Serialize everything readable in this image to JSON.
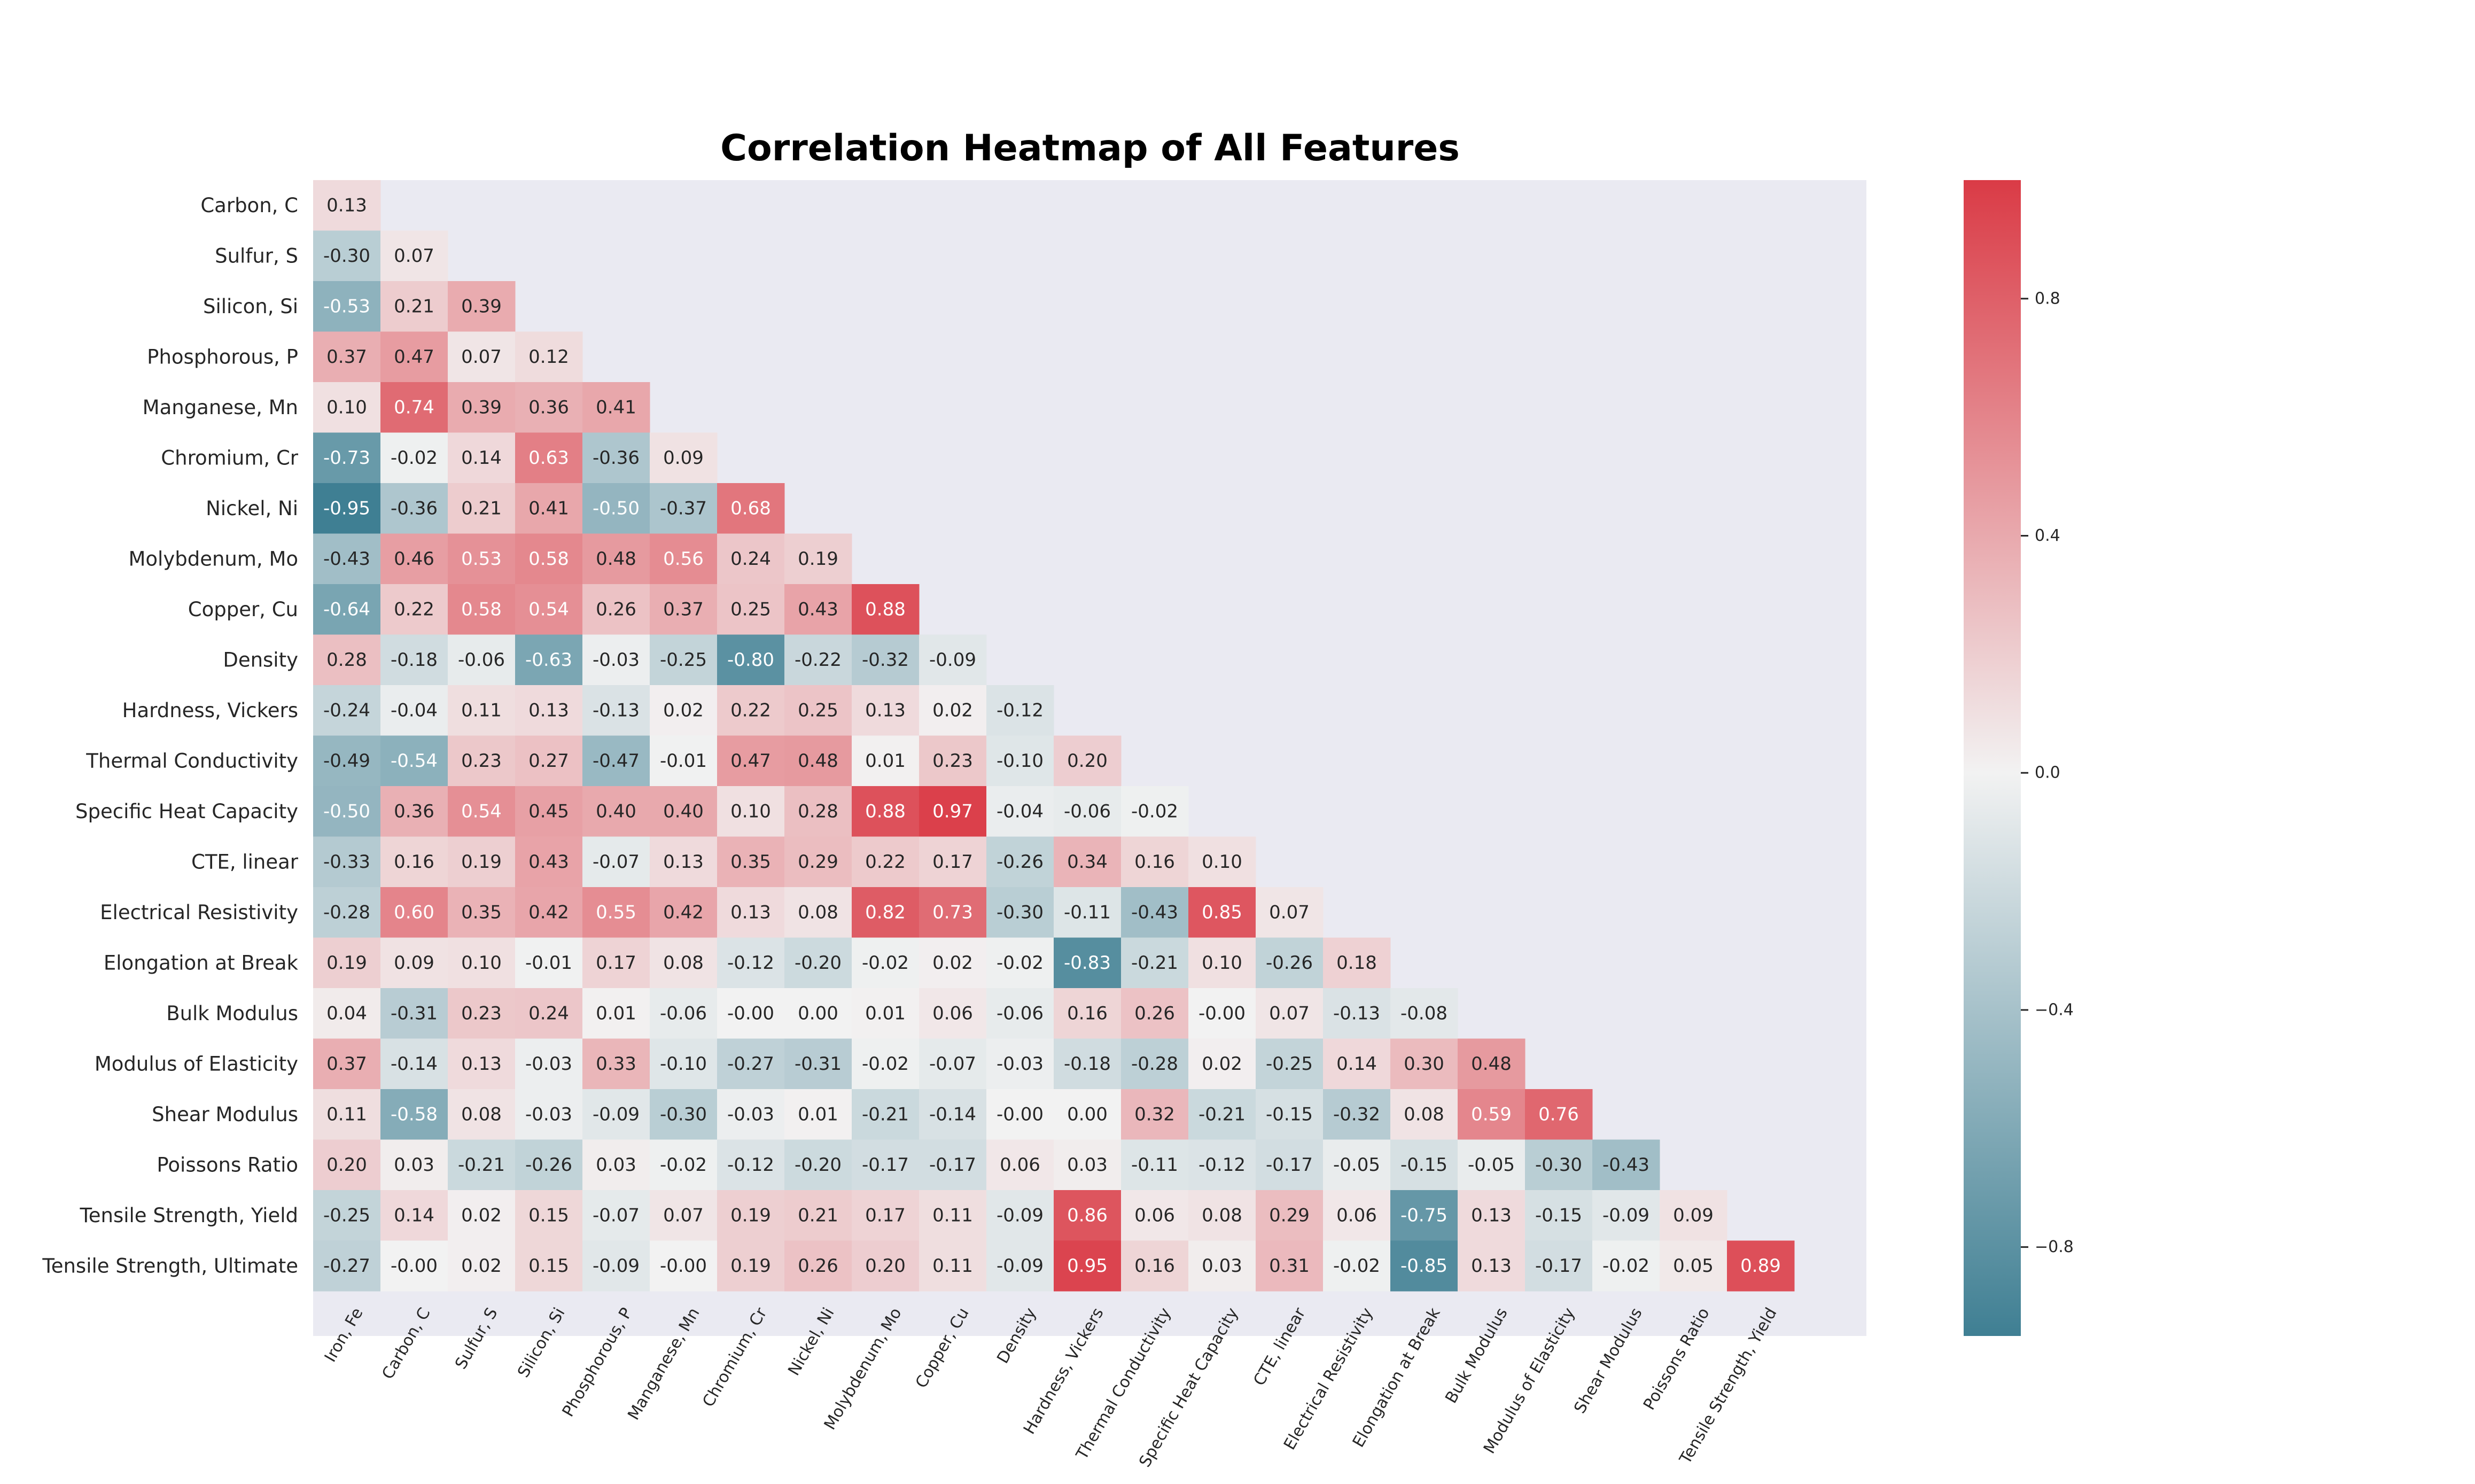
{
  "chart_data": {
    "type": "heatmap",
    "title": "Correlation Heatmap of All Features",
    "mask": "lower-triangle",
    "x_labels": [
      "Iron, Fe",
      "Carbon, C",
      "Sulfur, S",
      "Silicon, Si",
      "Phosphorous, P",
      "Manganese, Mn",
      "Chromium, Cr",
      "Nickel, Ni",
      "Molybdenum, Mo",
      "Copper, Cu",
      "Density",
      "Hardness, Vickers",
      "Thermal Conductivity",
      "Specific Heat Capacity",
      "CTE, linear",
      "Electrical Resistivity",
      "Elongation at Break",
      "Bulk Modulus",
      "Modulus of Elasticity",
      "Shear Modulus",
      "Poissons Ratio",
      "Tensile Strength, Yield"
    ],
    "y_labels": [
      "Carbon, C",
      "Sulfur, S",
      "Silicon, Si",
      "Phosphorous, P",
      "Manganese, Mn",
      "Chromium, Cr",
      "Nickel, Ni",
      "Molybdenum, Mo",
      "Copper, Cu",
      "Density",
      "Hardness, Vickers",
      "Thermal Conductivity",
      "Specific Heat Capacity",
      "CTE, linear",
      "Electrical Resistivity",
      "Elongation at Break",
      "Bulk Modulus",
      "Modulus of Elasticity",
      "Shear Modulus",
      "Poissons Ratio",
      "Tensile Strength, Yield",
      "Tensile Strength, Ultimate"
    ],
    "values": [
      [
        "0.13"
      ],
      [
        "-0.30",
        "0.07"
      ],
      [
        "-0.53",
        "0.21",
        "0.39"
      ],
      [
        "0.37",
        "0.47",
        "0.07",
        "0.12"
      ],
      [
        "0.10",
        "0.74",
        "0.39",
        "0.36",
        "0.41"
      ],
      [
        "-0.73",
        "-0.02",
        "0.14",
        "0.63",
        "-0.36",
        "0.09"
      ],
      [
        "-0.95",
        "-0.36",
        "0.21",
        "0.41",
        "-0.50",
        "-0.37",
        "0.68"
      ],
      [
        "-0.43",
        "0.46",
        "0.53",
        "0.58",
        "0.48",
        "0.56",
        "0.24",
        "0.19"
      ],
      [
        "-0.64",
        "0.22",
        "0.58",
        "0.54",
        "0.26",
        "0.37",
        "0.25",
        "0.43",
        "0.88"
      ],
      [
        "0.28",
        "-0.18",
        "-0.06",
        "-0.63",
        "-0.03",
        "-0.25",
        "-0.80",
        "-0.22",
        "-0.32",
        "-0.09"
      ],
      [
        "-0.24",
        "-0.04",
        "0.11",
        "0.13",
        "-0.13",
        "0.02",
        "0.22",
        "0.25",
        "0.13",
        "0.02",
        "-0.12"
      ],
      [
        "-0.49",
        "-0.54",
        "0.23",
        "0.27",
        "-0.47",
        "-0.01",
        "0.47",
        "0.48",
        "0.01",
        "0.23",
        "-0.10",
        "0.20"
      ],
      [
        "-0.50",
        "0.36",
        "0.54",
        "0.45",
        "0.40",
        "0.40",
        "0.10",
        "0.28",
        "0.88",
        "0.97",
        "-0.04",
        "-0.06",
        "-0.02"
      ],
      [
        "-0.33",
        "0.16",
        "0.19",
        "0.43",
        "-0.07",
        "0.13",
        "0.35",
        "0.29",
        "0.22",
        "0.17",
        "-0.26",
        "0.34",
        "0.16",
        "0.10"
      ],
      [
        "-0.28",
        "0.60",
        "0.35",
        "0.42",
        "0.55",
        "0.42",
        "0.13",
        "0.08",
        "0.82",
        "0.73",
        "-0.30",
        "-0.11",
        "-0.43",
        "0.85",
        "0.07"
      ],
      [
        "0.19",
        "0.09",
        "0.10",
        "-0.01",
        "0.17",
        "0.08",
        "-0.12",
        "-0.20",
        "-0.02",
        "0.02",
        "-0.02",
        "-0.83",
        "-0.21",
        "0.10",
        "-0.26",
        "0.18"
      ],
      [
        "0.04",
        "-0.31",
        "0.23",
        "0.24",
        "0.01",
        "-0.06",
        "-0.00",
        "0.00",
        "0.01",
        "0.06",
        "-0.06",
        "0.16",
        "0.26",
        "-0.00",
        "0.07",
        "-0.13",
        "-0.08"
      ],
      [
        "0.37",
        "-0.14",
        "0.13",
        "-0.03",
        "0.33",
        "-0.10",
        "-0.27",
        "-0.31",
        "-0.02",
        "-0.07",
        "-0.03",
        "-0.18",
        "-0.28",
        "0.02",
        "-0.25",
        "0.14",
        "0.30",
        "0.48"
      ],
      [
        "0.11",
        "-0.58",
        "0.08",
        "-0.03",
        "-0.09",
        "-0.30",
        "-0.03",
        "0.01",
        "-0.21",
        "-0.14",
        "-0.00",
        "0.00",
        "0.32",
        "-0.21",
        "-0.15",
        "-0.32",
        "0.08",
        "0.59",
        "0.76"
      ],
      [
        "0.20",
        "0.03",
        "-0.21",
        "-0.26",
        "0.03",
        "-0.02",
        "-0.12",
        "-0.20",
        "-0.17",
        "-0.17",
        "0.06",
        "0.03",
        "-0.11",
        "-0.12",
        "-0.17",
        "-0.05",
        "-0.15",
        "-0.05",
        "-0.30",
        "-0.43"
      ],
      [
        "-0.25",
        "0.14",
        "0.02",
        "0.15",
        "-0.07",
        "0.07",
        "0.19",
        "0.21",
        "0.17",
        "0.11",
        "-0.09",
        "0.86",
        "0.06",
        "0.08",
        "0.29",
        "0.06",
        "-0.75",
        "0.13",
        "-0.15",
        "-0.09",
        "0.09"
      ],
      [
        "-0.27",
        "-0.00",
        "0.02",
        "0.15",
        "-0.09",
        "-0.00",
        "0.19",
        "0.26",
        "0.20",
        "0.11",
        "-0.09",
        "0.95",
        "0.16",
        "0.03",
        "0.31",
        "-0.02",
        "-0.85",
        "0.13",
        "-0.17",
        "-0.02",
        "0.05",
        "0.89"
      ]
    ],
    "colorbar": {
      "vmin": -0.95,
      "vmax": 1.0,
      "ticks": [
        -0.8,
        -0.4,
        0.0,
        0.4,
        0.8
      ],
      "tick_labels": [
        "−0.8",
        "−0.4",
        "0.0",
        "0.4",
        "0.8"
      ]
    },
    "colors": {
      "negative": "#3f7f93",
      "center": "#f2f2f2",
      "positive": "#da3b46",
      "plot_background": "#eaeaf2",
      "text_dark": "#262626",
      "text_light": "#ffffff"
    }
  }
}
